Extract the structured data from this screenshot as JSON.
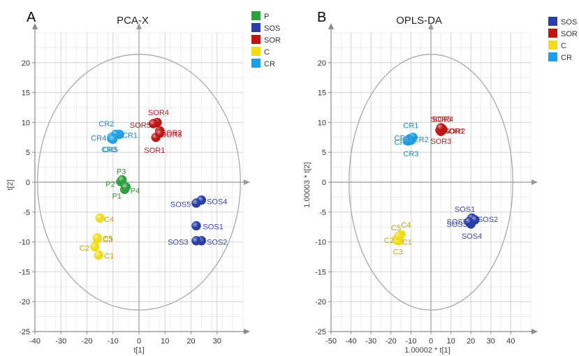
{
  "figure": {
    "colors": {
      "P": "#2e9e3e",
      "SOS": "#2a3ea8",
      "SOR": "#c01515",
      "C": "#f2dc1a",
      "CR": "#1ea0e6"
    },
    "label_colors": {
      "P": "#3a8a3a",
      "SOS": "#3848a0",
      "SOR": "#b02020",
      "C": "#bfa020",
      "CR": "#2288c0"
    }
  },
  "chart_data": [
    {
      "panel": "A",
      "type": "scatter",
      "title": "PCA-X",
      "xlabel": "t[1]",
      "ylabel": "t[2]",
      "xlim": [
        -40,
        40
      ],
      "ylim": [
        -25,
        25
      ],
      "xticks": [
        "-40",
        "-30",
        "-20",
        "-10",
        "0",
        "10",
        "20",
        "30"
      ],
      "yticks": [
        "-25",
        "-20",
        "-15",
        "-10",
        "-5",
        "0",
        "5",
        "10",
        "15",
        "20"
      ],
      "grid": true,
      "ellipse": {
        "cx": 0,
        "cy": 0,
        "rx": 39,
        "ry": 21.4
      },
      "legend": {
        "position": "right",
        "items": [
          "P",
          "SOS",
          "SOR",
          "C",
          "CR"
        ]
      },
      "series": [
        {
          "name": "P",
          "points": [
            {
              "label": "P1",
              "x": -5.5,
              "y": -1.2,
              "lx": -8.5,
              "ly": -2.3
            },
            {
              "label": "P2",
              "x": -7.0,
              "y": 0.1,
              "lx": -11.0,
              "ly": -0.3
            },
            {
              "label": "P3",
              "x": -6.5,
              "y": 0.4,
              "lx": -6.8,
              "ly": 1.8
            },
            {
              "label": "P4",
              "x": -5.0,
              "y": -0.8,
              "lx": -1.5,
              "ly": -1.4
            }
          ]
        },
        {
          "name": "SOS",
          "points": [
            {
              "label": "SOS1",
              "x": 22.0,
              "y": -7.3,
              "lx": 28.5,
              "ly": -7.4
            },
            {
              "label": "SOS2",
              "x": 24.0,
              "y": -9.8,
              "lx": 30.0,
              "ly": -10.0
            },
            {
              "label": "SOS3",
              "x": 22.0,
              "y": -9.8,
              "lx": 15.0,
              "ly": -10.0
            },
            {
              "label": "SOS4",
              "x": 24.0,
              "y": -3.0,
              "lx": 30.0,
              "ly": -3.2
            },
            {
              "label": "SOS5",
              "x": 22.0,
              "y": -3.5,
              "lx": 16.0,
              "ly": -3.7
            }
          ]
        },
        {
          "name": "SOR",
          "points": [
            {
              "label": "SOR1",
              "x": 6.5,
              "y": 7.5,
              "lx": 6.0,
              "ly": 5.4
            },
            {
              "label": "SOR2",
              "x": 8.0,
              "y": 8.6,
              "lx": 12.5,
              "ly": 8.3
            },
            {
              "label": "SOR3",
              "x": 8.0,
              "y": 8.2,
              "lx": 12.5,
              "ly": 8.0
            },
            {
              "label": "SOR4",
              "x": 7.0,
              "y": 10.0,
              "lx": 7.5,
              "ly": 11.7
            },
            {
              "label": "SOR5",
              "x": 5.5,
              "y": 9.8,
              "lx": 0.5,
              "ly": 9.6
            }
          ]
        },
        {
          "name": "C",
          "points": [
            {
              "label": "C1",
              "x": -15.5,
              "y": -12.2,
              "lx": -11.5,
              "ly": -12.3
            },
            {
              "label": "C2",
              "x": -17.0,
              "y": -10.8,
              "lx": -21.0,
              "ly": -11.0
            },
            {
              "label": "C3",
              "x": -16.0,
              "y": -9.5,
              "lx": -12.0,
              "ly": -9.6
            },
            {
              "label": "C4",
              "x": -15.0,
              "y": -6.0,
              "lx": -11.5,
              "ly": -6.2
            },
            {
              "label": "C5",
              "x": -16.0,
              "y": -9.3,
              "lx": -12.0,
              "ly": -9.4
            }
          ]
        },
        {
          "name": "CR",
          "points": [
            {
              "label": "CR1",
              "x": -7.5,
              "y": 8.0,
              "lx": -3.5,
              "ly": 7.9
            },
            {
              "label": "CR2",
              "x": -9.0,
              "y": 8.0,
              "lx": -12.5,
              "ly": 9.8
            },
            {
              "label": "CR3",
              "x": -10.5,
              "y": 7.3,
              "lx": -11.5,
              "ly": 5.5
            },
            {
              "label": "CR4",
              "x": -10.5,
              "y": 7.5,
              "lx": -15.5,
              "ly": 7.4
            },
            {
              "label": "CR5",
              "x": -10.0,
              "y": 7.2,
              "lx": -11.0,
              "ly": 5.5
            }
          ]
        }
      ]
    },
    {
      "panel": "B",
      "type": "scatter",
      "title": "OPLS-DA",
      "xlabel": "1.00002 * t[1]",
      "ylabel": "1.00003 * t[2]",
      "xlim": [
        -50,
        50
      ],
      "ylim": [
        -25,
        25
      ],
      "xticks": [
        "-50",
        "-40",
        "-30",
        "-20",
        "-10",
        "0",
        "10",
        "20",
        "30",
        "40"
      ],
      "yticks": [
        "-25",
        "-20",
        "-15",
        "-10",
        "-5",
        "0",
        "5",
        "10",
        "15",
        "20"
      ],
      "grid": true,
      "ellipse": {
        "cx": 0,
        "cy": 0,
        "rx": 41,
        "ry": 21.4
      },
      "legend": {
        "position": "right",
        "items": [
          "SOS",
          "SOR",
          "C",
          "CR"
        ]
      },
      "series": [
        {
          "name": "SOS",
          "points": [
            {
              "label": "SOS1",
              "x": 20.5,
              "y": -6.0,
              "lx": 17.0,
              "ly": -4.5
            },
            {
              "label": "SOS2",
              "x": 22.0,
              "y": -6.3,
              "lx": 28.5,
              "ly": -6.2
            },
            {
              "label": "SOS3",
              "x": 19.5,
              "y": -6.8,
              "lx": 13.0,
              "ly": -7.0
            },
            {
              "label": "SOS4",
              "x": 20.0,
              "y": -7.0,
              "lx": 20.5,
              "ly": -9.0
            },
            {
              "label": "SOS5",
              "x": 19.0,
              "y": -6.6,
              "lx": 13.0,
              "ly": -6.6
            }
          ]
        },
        {
          "name": "SOR",
          "points": [
            {
              "label": "SOR1",
              "x": 4.5,
              "y": 8.7,
              "lx": 11.5,
              "ly": 8.6
            },
            {
              "label": "SOR2",
              "x": 6.0,
              "y": 8.8,
              "lx": 12.0,
              "ly": 8.6
            },
            {
              "label": "SOR3",
              "x": 5.0,
              "y": 8.5,
              "lx": 5.0,
              "ly": 6.9
            },
            {
              "label": "SOR4",
              "x": 5.5,
              "y": 9.0,
              "lx": 6.0,
              "ly": 10.6
            },
            {
              "label": "SOR5",
              "x": 5.0,
              "y": 9.1,
              "lx": 5.0,
              "ly": 10.6
            }
          ]
        },
        {
          "name": "C",
          "points": [
            {
              "label": "C1",
              "x": -16.0,
              "y": -9.8,
              "lx": -12.0,
              "ly": -10.0
            },
            {
              "label": "C2",
              "x": -17.0,
              "y": -9.5,
              "lx": -21.0,
              "ly": -9.7
            },
            {
              "label": "C3",
              "x": -16.5,
              "y": -9.8,
              "lx": -16.5,
              "ly": -11.6
            },
            {
              "label": "C4",
              "x": -15.0,
              "y": -8.8,
              "lx": -12.5,
              "ly": -7.1
            },
            {
              "label": "C5",
              "x": -16.0,
              "y": -9.0,
              "lx": -17.5,
              "ly": -7.6
            }
          ]
        },
        {
          "name": "CR",
          "points": [
            {
              "label": "CR1",
              "x": -10.5,
              "y": 7.3,
              "lx": -10.0,
              "ly": 9.5
            },
            {
              "label": "CR2",
              "x": -9.0,
              "y": 7.5,
              "lx": -5.0,
              "ly": 7.2
            },
            {
              "label": "CR3",
              "x": -10.0,
              "y": 7.0,
              "lx": -10.0,
              "ly": 4.8
            },
            {
              "label": "CR4",
              "x": -11.0,
              "y": 7.2,
              "lx": -14.5,
              "ly": 7.4
            },
            {
              "label": "CR5",
              "x": -11.5,
              "y": 6.9,
              "lx": -14.5,
              "ly": 6.7
            }
          ]
        }
      ]
    }
  ]
}
